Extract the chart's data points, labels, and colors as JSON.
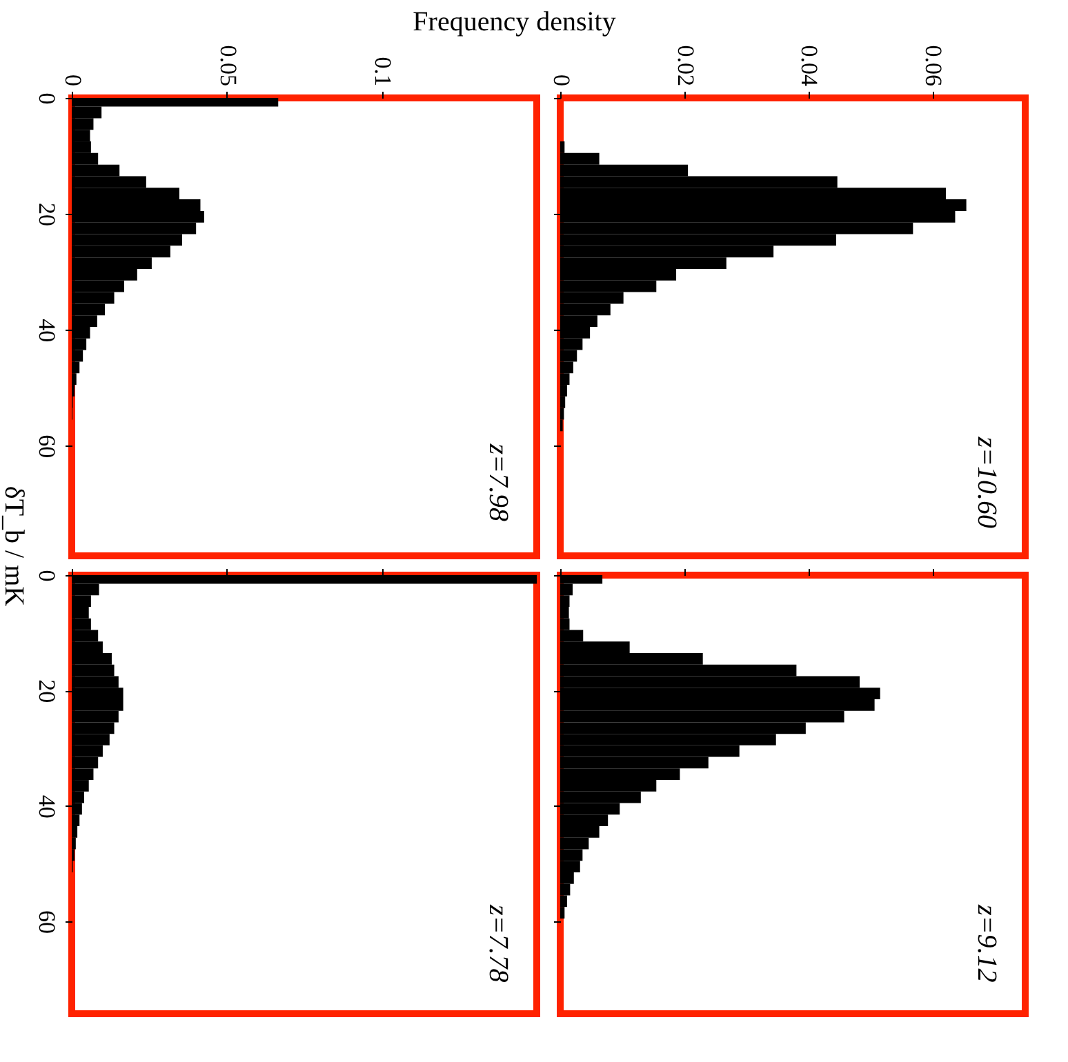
{
  "chart_data": [
    {
      "type": "histogram",
      "orientation": "horizontal",
      "xlabel": "Frequency density",
      "ylabel": "δT_b / mK",
      "color": "#000000",
      "annotations": [
        "z=7.98"
      ],
      "bins": [
        0,
        1.5,
        3.5,
        5.5,
        7.5,
        9.5,
        11.5,
        13.5,
        15.5,
        17.5,
        19.5,
        21.5,
        23.5,
        25.5,
        27.5,
        29.5,
        31.5,
        33.5,
        35.5,
        37.5,
        39.5,
        41.5,
        43.5,
        45.5,
        47.5,
        49.5,
        51.5,
        53.5,
        55.5
      ],
      "values": [
        0.0666,
        0.0096,
        0.007,
        0.0059,
        0.0062,
        0.0085,
        0.0154,
        0.024,
        0.0347,
        0.0415,
        0.0427,
        0.0401,
        0.0356,
        0.0318,
        0.0258,
        0.0211,
        0.0169,
        0.0137,
        0.0107,
        0.0082,
        0.0059,
        0.0047,
        0.0036,
        0.0025,
        0.0015,
        0.0009,
        0.0003,
        0.0002
      ],
      "xlim": [
        0,
        0.15
      ],
      "xticks": [
        0,
        0.05,
        0.1
      ],
      "ylim": [
        79,
        0
      ],
      "yticks": [
        0,
        20,
        40,
        60
      ]
    },
    {
      "type": "histogram",
      "orientation": "horizontal",
      "color": "#000000",
      "annotations": [
        "z=10.60"
      ],
      "tick_labels": "x",
      "bins": [
        7.5,
        9.5,
        11.5,
        13.5,
        15.5,
        17.5,
        19.5,
        21.5,
        23.5,
        25.5,
        27.5,
        29.5,
        31.5,
        33.5,
        35.5,
        37.5,
        39.5,
        41.5,
        43.5,
        45.5,
        47.5,
        49.5,
        51.5,
        53.5,
        55.5,
        57.5
      ],
      "values": [
        0.0007,
        0.0063,
        0.0206,
        0.0447,
        0.0622,
        0.0655,
        0.0637,
        0.0569,
        0.0445,
        0.0344,
        0.0268,
        0.0187,
        0.0155,
        0.0102,
        0.0081,
        0.006,
        0.0048,
        0.0036,
        0.0027,
        0.0021,
        0.0015,
        0.0011,
        0.0008,
        0.0006,
        0.0004
      ],
      "xlim": [
        0,
        0.075
      ],
      "xticks": [
        0,
        0.02,
        0.04,
        0.06
      ],
      "ylim": [
        79,
        0
      ],
      "yticks": [
        0,
        20,
        40,
        60
      ]
    },
    {
      "type": "histogram",
      "orientation": "horizontal",
      "color": "#000000",
      "annotations": [
        "z=7.78"
      ],
      "tick_labels": "y",
      "bins": [
        0,
        1.5,
        3.5,
        5.5,
        7.5,
        9.5,
        11.5,
        13.5,
        15.5,
        17.5,
        19.5,
        21.5,
        23.5,
        25.5,
        27.5,
        29.5,
        31.5,
        33.5,
        35.5,
        37.5,
        39.5,
        41.5,
        43.5,
        45.5,
        47.5,
        49.5,
        51.5
      ],
      "values": [
        0.15,
        0.0088,
        0.0062,
        0.0055,
        0.0062,
        0.0085,
        0.01,
        0.0129,
        0.0137,
        0.0151,
        0.0166,
        0.0166,
        0.0151,
        0.0137,
        0.0122,
        0.01,
        0.0085,
        0.007,
        0.0055,
        0.004,
        0.0033,
        0.0025,
        0.0018,
        0.0013,
        0.0009,
        0.0003
      ],
      "xlim": [
        0,
        0.15
      ],
      "xticks": [
        0,
        0.05,
        0.1
      ],
      "ylim": [
        76,
        0
      ],
      "yticks": [
        0,
        20,
        40,
        60
      ]
    },
    {
      "type": "histogram",
      "orientation": "horizontal",
      "color": "#000000",
      "annotations": [
        "z=9.12"
      ],
      "tick_labels": false,
      "bins": [
        0,
        1.5,
        3.5,
        5.5,
        7.5,
        9.5,
        11.5,
        13.5,
        15.5,
        17.5,
        19.5,
        21.5,
        23.5,
        25.5,
        27.5,
        29.5,
        31.5,
        33.5,
        35.5,
        37.5,
        39.5,
        41.5,
        43.5,
        45.5,
        47.5,
        49.5,
        51.5,
        53.5,
        55.5,
        57.5,
        59.5
      ],
      "values": [
        0.0068,
        0.002,
        0.0015,
        0.0014,
        0.0015,
        0.0037,
        0.0112,
        0.023,
        0.0381,
        0.0483,
        0.0516,
        0.0507,
        0.0458,
        0.0396,
        0.0348,
        0.0289,
        0.0239,
        0.0193,
        0.0155,
        0.013,
        0.0096,
        0.0077,
        0.0063,
        0.0046,
        0.0036,
        0.0032,
        0.0022,
        0.0016,
        0.0011,
        0.0007
      ],
      "xlim": [
        0,
        0.075
      ],
      "xticks": [
        0,
        0.02,
        0.04,
        0.06
      ],
      "ylim": [
        76,
        0
      ],
      "yticks": [
        0,
        20,
        40,
        60
      ]
    }
  ]
}
